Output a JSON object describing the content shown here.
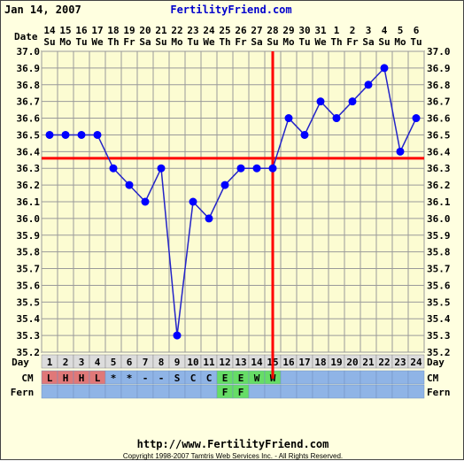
{
  "header": {
    "start_date": "Jan 14, 2007",
    "site_name": "FertilityFriend.com"
  },
  "footer": {
    "url": "http://www.FertilityFriend.com",
    "copyright": "Copyright 1998-2007 Tamtris Web Services Inc. - All Rights Reserved."
  },
  "colors": {
    "background": "#ffffe0",
    "plot_bg": "#fcfcd2",
    "grid": "#9a9a9a",
    "line": "#2323c8",
    "point": "#0000ff",
    "coverline": "#ff0000",
    "ovulation_line": "#ff0000",
    "header_link": "#0000cc",
    "cm_row_bg": "#8fb4e6",
    "fern_row_bg": "#8fb4e6",
    "cm_red": "#e07878",
    "cm_green": "#66dd66",
    "day_row_bg": "#dcdcdc"
  },
  "chart_data": {
    "type": "line",
    "title": "",
    "xlabel": "",
    "ylabel": "",
    "ylim": [
      35.2,
      37.0
    ],
    "grid": true,
    "row_labels": {
      "date": "Date",
      "day": "Day",
      "cm": "CM",
      "fern": "Fern"
    },
    "dates": [
      "14",
      "15",
      "16",
      "17",
      "18",
      "19",
      "20",
      "21",
      "22",
      "23",
      "24",
      "25",
      "26",
      "27",
      "28",
      "29",
      "30",
      "31",
      "1",
      "2",
      "3",
      "4",
      "5",
      "6"
    ],
    "weekdays": [
      "Su",
      "Mo",
      "Tu",
      "We",
      "Th",
      "Fr",
      "Sa",
      "Su",
      "Mo",
      "Tu",
      "We",
      "Th",
      "Fr",
      "Sa",
      "Su",
      "Mo",
      "Tu",
      "We",
      "Th",
      "Fr",
      "Sa",
      "Su",
      "Mo",
      "Tu"
    ],
    "days": [
      1,
      2,
      3,
      4,
      5,
      6,
      7,
      8,
      9,
      10,
      11,
      12,
      13,
      14,
      15,
      16,
      17,
      18,
      19,
      20,
      21,
      22,
      23,
      24
    ],
    "temperatures": [
      36.5,
      36.5,
      36.5,
      36.5,
      36.3,
      36.2,
      36.1,
      36.3,
      35.3,
      36.1,
      36.0,
      36.2,
      36.3,
      36.3,
      36.3,
      36.6,
      36.5,
      36.7,
      36.6,
      36.7,
      36.8,
      36.9,
      36.4,
      36.6
    ],
    "y_ticks": [
      {
        "value": 37.0,
        "label": "37.0"
      },
      {
        "value": 36.9,
        "label": "36.9"
      },
      {
        "value": 36.8,
        "label": "36.8"
      },
      {
        "value": 36.7,
        "label": "36.7"
      },
      {
        "value": 36.6,
        "label": "36.6"
      },
      {
        "value": 36.5,
        "label": "36.5"
      },
      {
        "value": 36.4,
        "label": "36.4"
      },
      {
        "value": 36.3,
        "label": "36.3"
      },
      {
        "value": 36.2,
        "label": "36.2"
      },
      {
        "value": 36.1,
        "label": "36.1"
      },
      {
        "value": 36.0,
        "label": "36.0"
      },
      {
        "value": 35.9,
        "label": "35.9"
      },
      {
        "value": 35.8,
        "label": "35.8"
      },
      {
        "value": 35.7,
        "label": "35.7"
      },
      {
        "value": 35.6,
        "label": "35.6"
      },
      {
        "value": 35.5,
        "label": "35.5"
      },
      {
        "value": 35.4,
        "label": "35.4"
      },
      {
        "value": 35.3,
        "label": "35.3"
      },
      {
        "value": 35.2,
        "label": "35.2"
      }
    ],
    "coverline": 36.36,
    "ovulation_day": 15,
    "cervical_mucus": [
      "L",
      "H",
      "H",
      "L",
      "*",
      "*",
      "-",
      "-",
      "S",
      "C",
      "C",
      "E",
      "E",
      "W",
      "W",
      "",
      "",
      "",
      "",
      "",
      "",
      "",
      "",
      ""
    ],
    "cm_colors": [
      "red",
      "red",
      "red",
      "red",
      "",
      "",
      "",
      "",
      "",
      "",
      "",
      "green",
      "green",
      "green",
      "green",
      "",
      "",
      "",
      "",
      "",
      "",
      "",
      "",
      ""
    ],
    "fern": [
      "",
      "",
      "",
      "",
      "",
      "",
      "",
      "",
      "",
      "",
      "",
      "F",
      "F",
      "",
      "",
      "",
      "",
      "",
      "",
      "",
      "",
      "",
      "",
      ""
    ],
    "fern_colors": [
      "",
      "",
      "",
      "",
      "",
      "",
      "",
      "",
      "",
      "",
      "",
      "green",
      "green",
      "",
      "",
      "",
      "",
      "",
      "",
      "",
      "",
      "",
      "",
      ""
    ]
  }
}
